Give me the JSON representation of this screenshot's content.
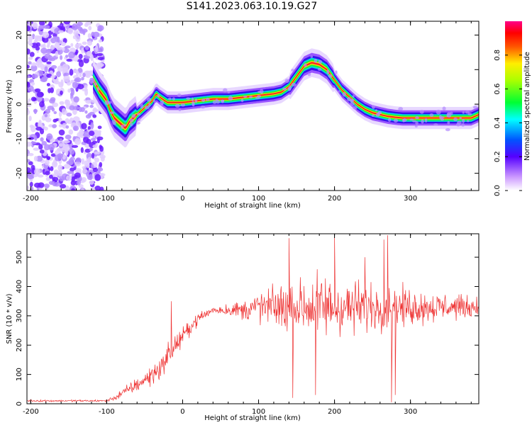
{
  "title": "S141.2023.063.10.19.G27",
  "chart_data": [
    {
      "type": "heatmap",
      "xlabel": "Height of straight line (km)",
      "ylabel": "Frequency (Hz)",
      "xlim": [
        -205,
        390
      ],
      "ylim": [
        -25,
        24
      ],
      "xticks": [
        -200,
        -100,
        0,
        100,
        200,
        300
      ],
      "yticks": [
        -20,
        -10,
        0,
        10,
        20
      ],
      "colorbar": {
        "label": "Normalized spectral amplitude",
        "range": [
          0,
          1
        ],
        "ticks": [
          "0.0",
          "0.2",
          "0.4",
          "0.6",
          "0.8"
        ],
        "colormap": "white-purple-blue-cyan-green-yellow-red-magenta"
      },
      "ridge": {
        "x": [
          -120,
          -110,
          -100,
          -95,
          -90,
          -85,
          -80,
          -75,
          -70,
          -60,
          -50,
          -40,
          -35,
          -30,
          -20,
          0,
          20,
          40,
          60,
          80,
          100,
          120,
          130,
          140,
          150,
          160,
          170,
          180,
          190,
          200,
          210,
          220,
          230,
          240,
          250,
          260,
          270,
          280,
          290,
          300,
          320,
          340,
          360,
          380,
          390
        ],
        "y": [
          8,
          4,
          1,
          -2,
          -4,
          -5,
          -6,
          -7,
          -5,
          -3,
          -1,
          1,
          3,
          2,
          0.5,
          0.5,
          1,
          1.5,
          1.5,
          2,
          2.5,
          3,
          3.5,
          5,
          8,
          11,
          12,
          11.5,
          10,
          7,
          4,
          2,
          0,
          -1.5,
          -2.5,
          -3,
          -3.5,
          -3.8,
          -4,
          -4,
          -4,
          -4,
          -4,
          -4,
          -3
        ]
      },
      "noise_region_x": [
        -205,
        -120
      ]
    },
    {
      "type": "line",
      "xlabel": "Height of straight line (km)",
      "ylabel": "SNR (10 * v/v)",
      "xlim": [
        -205,
        390
      ],
      "ylim": [
        0,
        580
      ],
      "xticks": [
        -200,
        -100,
        0,
        100,
        200,
        300
      ],
      "yticks": [
        0,
        100,
        200,
        300,
        400,
        500
      ],
      "series": [
        {
          "color": "#ee3333",
          "envelope": {
            "x": [
              -205,
              -100,
              -90,
              -70,
              -50,
              -30,
              -15,
              0,
              20,
              40,
              60,
              80,
              100,
              120,
              140,
              160,
              180,
              200,
              220,
              240,
              260,
              280,
              300,
              320,
              340,
              360,
              390
            ],
            "baseline": [
              10,
              10,
              20,
              50,
              80,
              120,
              180,
              230,
              290,
              320,
              320,
              320,
              330,
              330,
              330,
              330,
              330,
              330,
              330,
              330,
              330,
              330,
              330,
              330,
              330,
              330,
              330
            ],
            "spread": [
              5,
              5,
              15,
              30,
              40,
              60,
              60,
              40,
              30,
              20,
              30,
              50,
              80,
              100,
              120,
              140,
              160,
              150,
              130,
              120,
              110,
              100,
              90,
              80,
              70,
              60,
              50
            ]
          },
          "spikes": [
            {
              "x": -15,
              "y": 350
            },
            {
              "x": 140,
              "y": 565
            },
            {
              "x": 145,
              "y": 20
            },
            {
              "x": 175,
              "y": 30
            },
            {
              "x": 200,
              "y": 570
            },
            {
              "x": 240,
              "y": 500
            },
            {
              "x": 265,
              "y": 560
            },
            {
              "x": 270,
              "y": 575
            },
            {
              "x": 275,
              "y": 5
            },
            {
              "x": 280,
              "y": 30
            }
          ]
        }
      ]
    }
  ]
}
